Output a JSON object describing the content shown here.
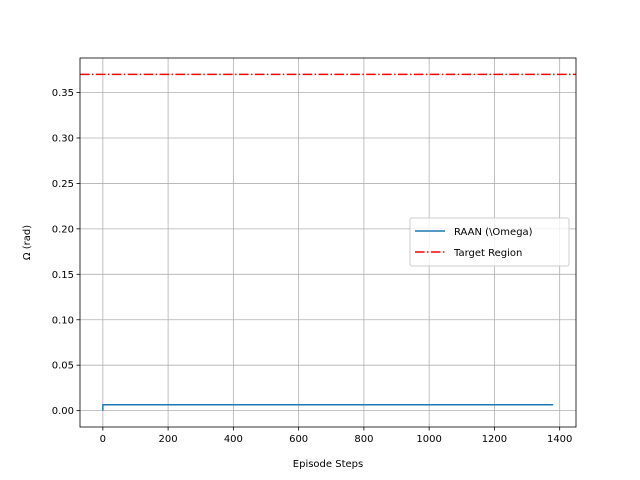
{
  "chart_data": {
    "type": "line",
    "title": "",
    "xlabel": "Episode Steps",
    "ylabel": "Ω (rad)",
    "xlim": [
      -70,
      1450
    ],
    "ylim": [
      -0.018,
      0.388
    ],
    "x_ticks": [
      0,
      200,
      400,
      600,
      800,
      1000,
      1200,
      1400
    ],
    "x_tick_labels": [
      "0",
      "200",
      "400",
      "600",
      "800",
      "1000",
      "1200",
      "1400"
    ],
    "y_ticks": [
      0.0,
      0.05,
      0.1,
      0.15,
      0.2,
      0.25,
      0.3,
      0.35
    ],
    "y_tick_labels": [
      "0.00",
      "0.05",
      "0.10",
      "0.15",
      "0.20",
      "0.25",
      "0.30",
      "0.35"
    ],
    "grid": true,
    "legend_position": "center-right",
    "series": [
      {
        "name": "RAAN (\\Omega)",
        "color": "#1f77b4",
        "style": "solid",
        "x": [
          0,
          0,
          1,
          1380
        ],
        "y": [
          0.0,
          0.0065,
          0.0065,
          0.0065
        ]
      },
      {
        "name": "Target Region",
        "color": "#ff0000",
        "style": "dashdot",
        "hline": 0.37
      }
    ]
  }
}
